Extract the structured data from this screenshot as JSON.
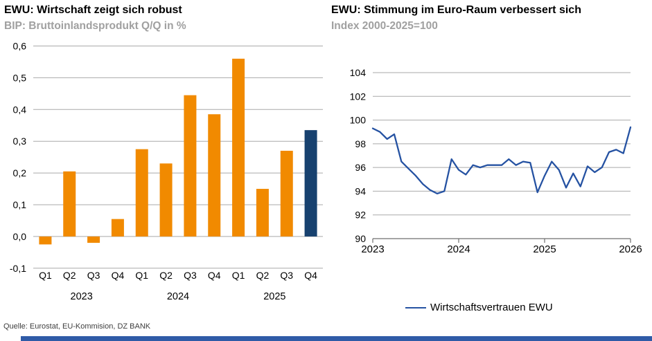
{
  "source": "Quelle: Eurostat, EU-Kommision, DZ BANK",
  "colors": {
    "bar_orange": "#F18A00",
    "bar_highlight_navy": "#17416F",
    "line_blue": "#2552A2",
    "grid_gray": "#A9A9A9",
    "axis_gray": "#6e6e6e",
    "subtitle_gray": "#a0a0a0",
    "footer_bar_blue": "#2F5BA7"
  },
  "chart_data": [
    {
      "type": "bar",
      "title": "EWU: Wirtschaft zeigt sich robust",
      "subtitle": "BIP: Bruttoinlandsprodukt Q/Q in %",
      "categories": [
        "Q1",
        "Q2",
        "Q3",
        "Q4",
        "Q1",
        "Q2",
        "Q3",
        "Q4",
        "Q1",
        "Q2",
        "Q3",
        "Q4"
      ],
      "year_groups": [
        "2023",
        "2024",
        "2025"
      ],
      "values": [
        -0.025,
        0.205,
        -0.02,
        0.055,
        0.275,
        0.23,
        0.445,
        0.385,
        0.56,
        0.15,
        0.27,
        0.335
      ],
      "highlight_index": 11,
      "ylim": [
        -0.1,
        0.6
      ],
      "ytick_labels": [
        "-0,1",
        "0,0",
        "0,1",
        "0,2",
        "0,3",
        "0,4",
        "0,5",
        "0,6"
      ],
      "grid": true,
      "legend_position": "none"
    },
    {
      "type": "line",
      "title": "EWU: Stimmung im Euro-Raum verbessert sich",
      "subtitle": "Index 2000-2025=100",
      "x_tick_labels": [
        "2023",
        "2024",
        "2025",
        "2026"
      ],
      "ylim": [
        90,
        104
      ],
      "ytick_labels": [
        "90",
        "92",
        "94",
        "96",
        "98",
        "100",
        "102",
        "104"
      ],
      "grid": true,
      "legend_position": "bottom",
      "series": [
        {
          "name": "Wirtschaftsvertrauen EWU",
          "start": "2023-01",
          "frequency": "monthly",
          "values": [
            99.3,
            99.0,
            98.4,
            98.8,
            96.5,
            95.9,
            95.3,
            94.6,
            94.1,
            93.8,
            94.0,
            96.7,
            95.8,
            95.4,
            96.2,
            96.0,
            96.2,
            96.2,
            96.2,
            96.7,
            96.2,
            96.5,
            96.4,
            93.9,
            95.3,
            96.5,
            95.8,
            94.3,
            95.5,
            94.4,
            96.1,
            95.6,
            96.0,
            97.3,
            97.5,
            97.2,
            99.4
          ]
        }
      ]
    }
  ]
}
